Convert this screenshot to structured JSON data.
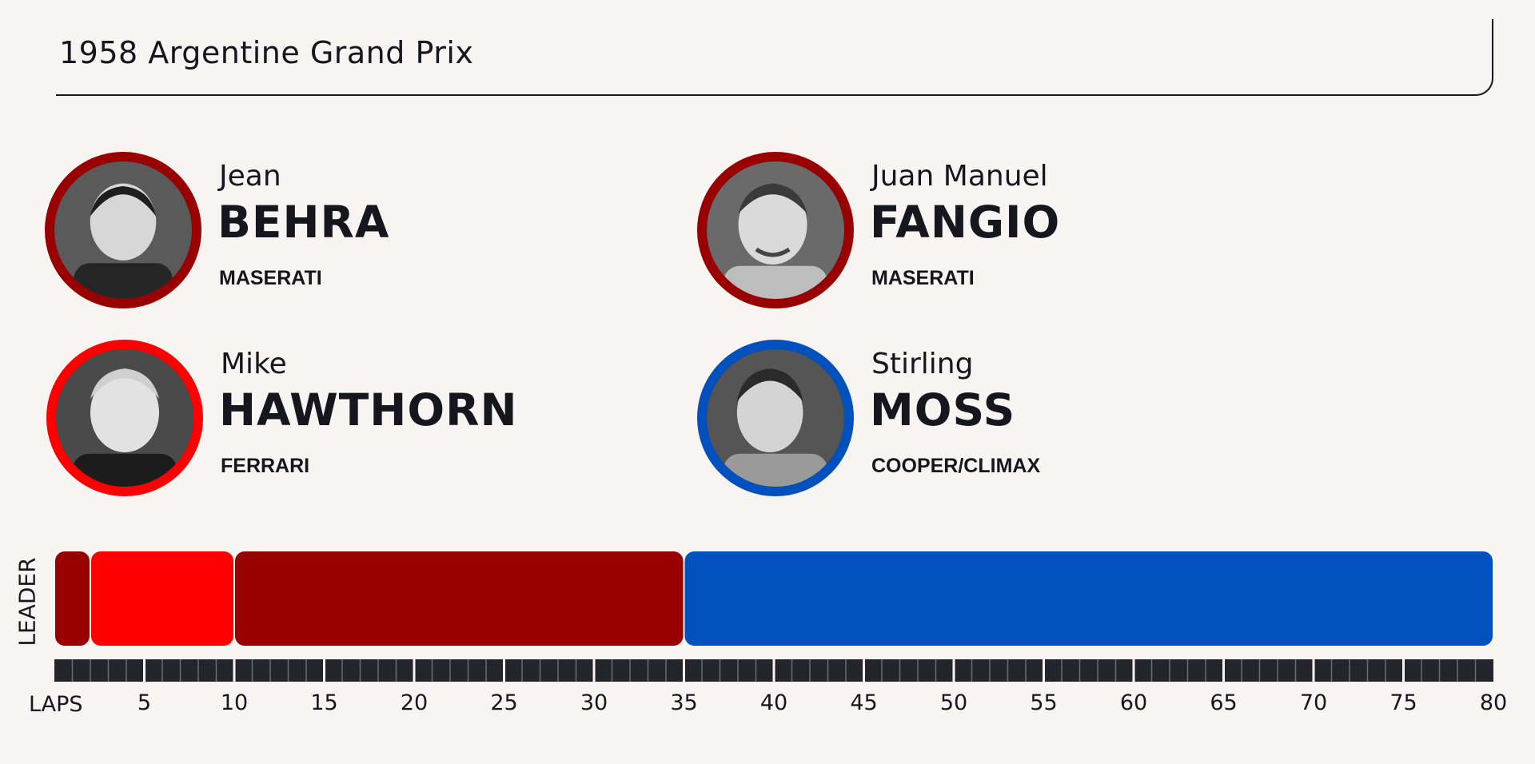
{
  "title": "1958 Argentine Grand Prix",
  "drivers": [
    {
      "first": "Jean",
      "last": "BEHRA",
      "team": "MASERATI",
      "color": "#990000",
      "icon": "driver-portrait"
    },
    {
      "first": "Juan Manuel",
      "last": "FANGIO",
      "team": "MASERATI",
      "color": "#990000",
      "icon": "driver-portrait"
    },
    {
      "first": "Mike",
      "last": "HAWTHORN",
      "team": "FERRARI",
      "color": "#ff0000",
      "icon": "driver-portrait"
    },
    {
      "first": "Stirling",
      "last": "MOSS",
      "team": "COOPER/CLIMAX",
      "color": "#0050be",
      "icon": "driver-portrait"
    }
  ],
  "chart_data": {
    "type": "bar",
    "ylabel": "LEADER",
    "xlabel": "LAPS",
    "xlim": [
      0,
      80
    ],
    "tick_labels": [
      "5",
      "10",
      "15",
      "20",
      "25",
      "30",
      "35",
      "40",
      "45",
      "50",
      "55",
      "60",
      "65",
      "70",
      "75",
      "80"
    ],
    "series": [
      {
        "name": "Jean BEHRA",
        "start": 0,
        "end": 2,
        "color": "#990000"
      },
      {
        "name": "Mike HAWTHORN",
        "start": 2,
        "end": 10,
        "color": "#ff0000"
      },
      {
        "name": "Juan Manuel FANGIO",
        "start": 10,
        "end": 35,
        "color": "#990000"
      },
      {
        "name": "Stirling MOSS",
        "start": 35,
        "end": 80,
        "color": "#0050be"
      }
    ],
    "grid": false,
    "legend": "none"
  }
}
